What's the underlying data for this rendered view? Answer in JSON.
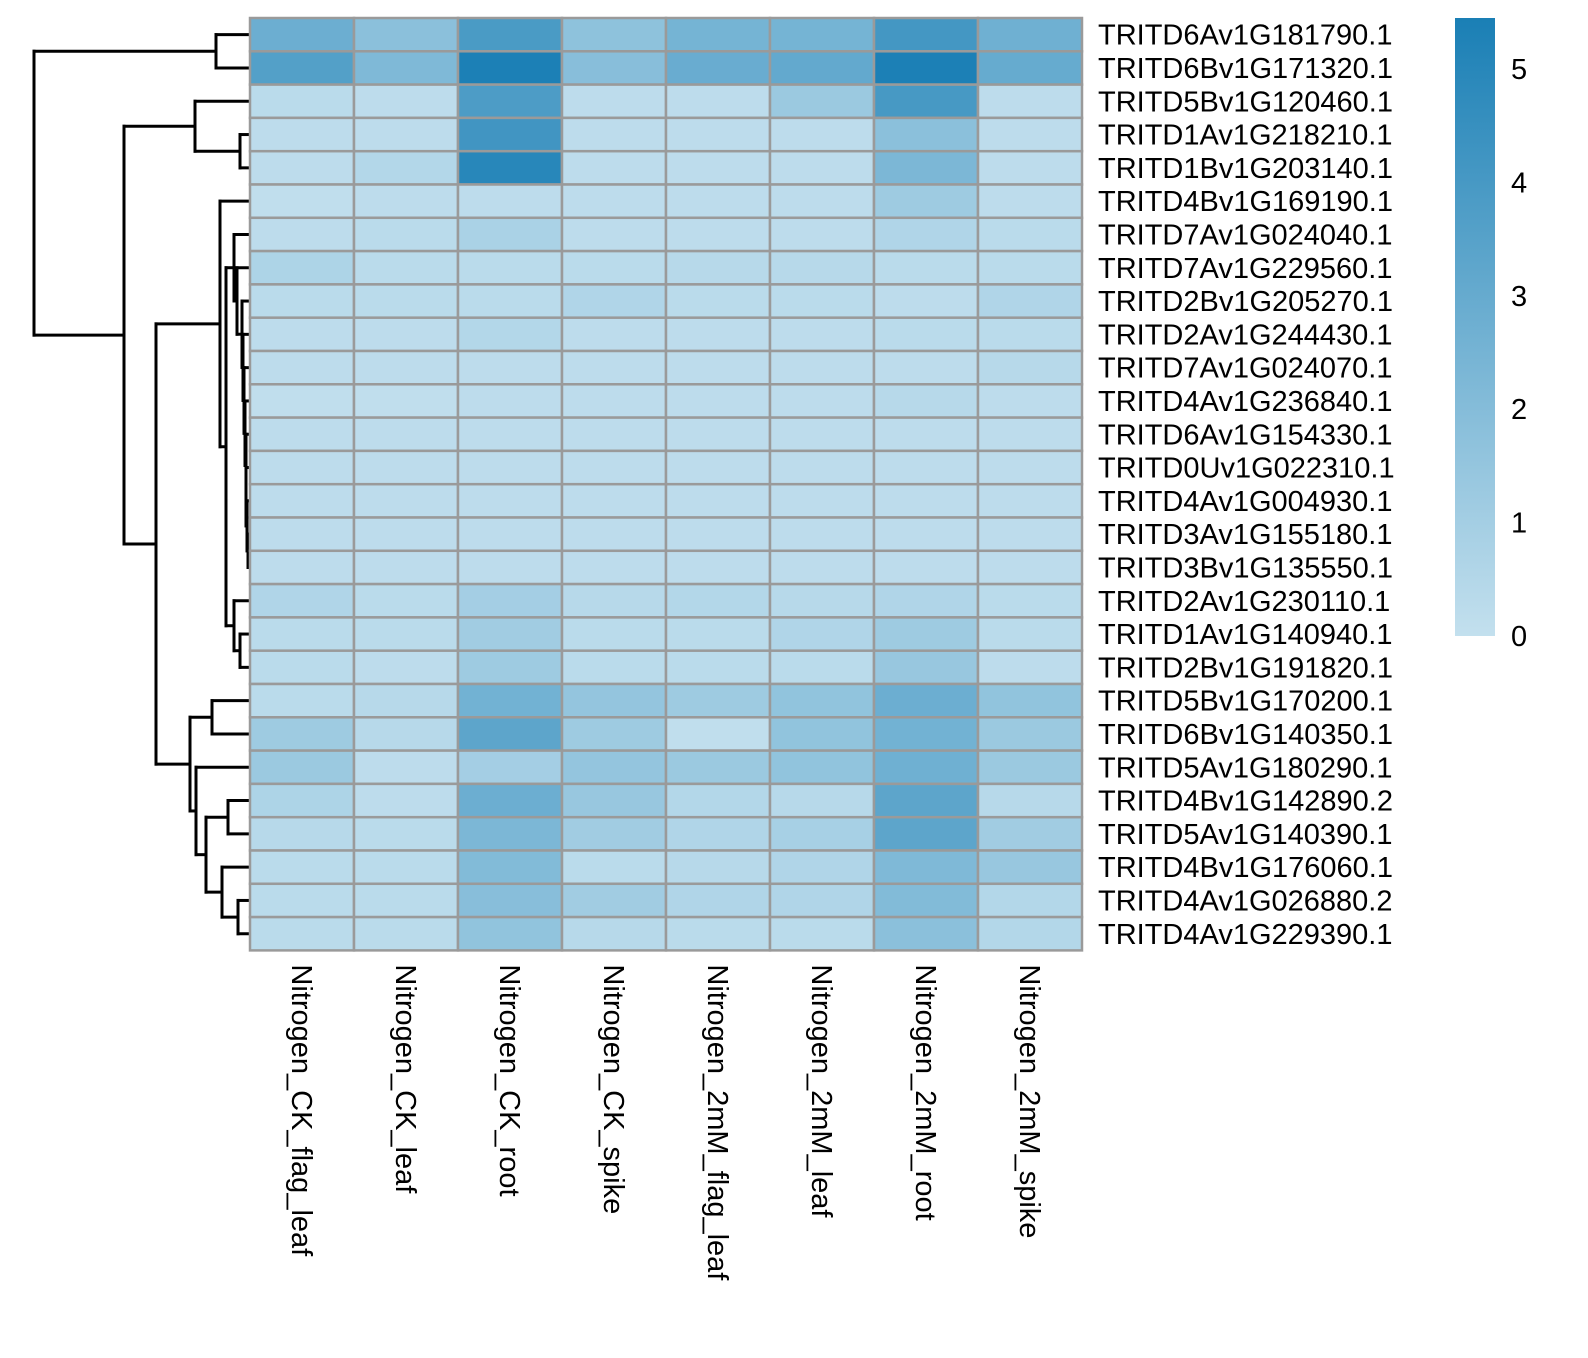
{
  "chart_data": {
    "type": "heatmap",
    "columns": [
      "Nitrogen_CK_flag_leaf",
      "Nitrogen_CK_leaf",
      "Nitrogen_CK_root",
      "Nitrogen_CK_spike",
      "Nitrogen_2mM_flag_leaf",
      "Nitrogen_2mM_leaf",
      "Nitrogen_2mM_root",
      "Nitrogen_2mM_spike"
    ],
    "rows": [
      "TRITD6Av1G181790.1",
      "TRITD6Bv1G171320.1",
      "TRITD5Bv1G120460.1",
      "TRITD1Av1G218210.1",
      "TRITD1Bv1G203140.1",
      "TRITD4Bv1G169190.1",
      "TRITD7Av1G024040.1",
      "TRITD7Av1G229560.1",
      "TRITD2Bv1G205270.1",
      "TRITD2Av1G244430.1",
      "TRITD7Av1G024070.1",
      "TRITD4Av1G236840.1",
      "TRITD6Av1G154330.1",
      "TRITD0Uv1G022310.1",
      "TRITD4Av1G004930.1",
      "TRITD3Av1G155180.1",
      "TRITD3Bv1G135550.1",
      "TRITD2Av1G230110.1",
      "TRITD1Av1G140940.1",
      "TRITD2Bv1G191820.1",
      "TRITD5Bv1G170200.1",
      "TRITD6Bv1G140350.1",
      "TRITD5Av1G180290.1",
      "TRITD4Bv1G142890.2",
      "TRITD5Av1G140390.1",
      "TRITD4Bv1G176060.1",
      "TRITD4Av1G026880.2",
      "TRITD4Av1G229390.1"
    ],
    "values": [
      [
        2.8,
        1.8,
        3.9,
        1.7,
        2.5,
        2.5,
        4.1,
        2.7
      ],
      [
        3.6,
        2.2,
        5.4,
        1.9,
        2.9,
        3.1,
        5.4,
        3.0
      ],
      [
        0.3,
        0.2,
        3.8,
        0.2,
        0.2,
        1.3,
        4.0,
        0.2
      ],
      [
        0.2,
        0.2,
        4.2,
        0.2,
        0.2,
        0.2,
        1.8,
        0.2
      ],
      [
        0.2,
        0.5,
        5.0,
        0.2,
        0.2,
        0.2,
        2.3,
        0.2
      ],
      [
        0.1,
        0.2,
        0.2,
        0.2,
        0.2,
        0.2,
        1.2,
        0.2
      ],
      [
        0.2,
        0.3,
        0.8,
        0.2,
        0.2,
        0.2,
        0.6,
        0.3
      ],
      [
        0.7,
        0.3,
        0.3,
        0.3,
        0.4,
        0.4,
        0.3,
        0.3
      ],
      [
        0.3,
        0.3,
        0.3,
        0.6,
        0.3,
        0.3,
        0.2,
        0.6
      ],
      [
        0.2,
        0.2,
        0.5,
        0.2,
        0.2,
        0.2,
        0.3,
        0.3
      ],
      [
        0.2,
        0.2,
        0.2,
        0.2,
        0.2,
        0.2,
        0.2,
        0.4
      ],
      [
        0.1,
        0.1,
        0.2,
        0.2,
        0.2,
        0.2,
        0.4,
        0.2
      ],
      [
        0.2,
        0.2,
        0.2,
        0.2,
        0.2,
        0.2,
        0.2,
        0.2
      ],
      [
        0.2,
        0.2,
        0.2,
        0.2,
        0.2,
        0.2,
        0.2,
        0.2
      ],
      [
        0.2,
        0.2,
        0.2,
        0.2,
        0.2,
        0.2,
        0.2,
        0.2
      ],
      [
        0.2,
        0.2,
        0.2,
        0.2,
        0.2,
        0.2,
        0.2,
        0.2
      ],
      [
        0.2,
        0.2,
        0.2,
        0.2,
        0.2,
        0.2,
        0.2,
        0.2
      ],
      [
        0.6,
        0.3,
        1.0,
        0.4,
        0.5,
        0.4,
        0.6,
        0.3
      ],
      [
        0.3,
        0.3,
        1.1,
        0.3,
        0.3,
        0.6,
        1.2,
        0.3
      ],
      [
        0.3,
        0.2,
        1.2,
        0.3,
        0.3,
        0.3,
        1.4,
        0.2
      ],
      [
        0.3,
        0.4,
        2.6,
        1.5,
        1.2,
        1.6,
        2.8,
        1.6
      ],
      [
        1.2,
        0.4,
        3.3,
        1.2,
        0.1,
        1.6,
        2.6,
        1.3
      ],
      [
        1.3,
        0.2,
        1.0,
        1.5,
        1.3,
        1.6,
        2.7,
        1.3
      ],
      [
        0.7,
        0.2,
        2.8,
        1.4,
        0.5,
        0.4,
        3.3,
        0.4
      ],
      [
        0.4,
        0.3,
        2.3,
        1.1,
        0.6,
        0.9,
        3.3,
        1.1
      ],
      [
        0.3,
        0.3,
        2.1,
        0.3,
        0.4,
        0.6,
        2.2,
        1.4
      ],
      [
        0.3,
        0.3,
        1.9,
        1.1,
        0.6,
        0.6,
        2.1,
        0.5
      ],
      [
        0.3,
        0.3,
        1.6,
        0.4,
        0.3,
        0.3,
        1.8,
        0.5
      ]
    ],
    "colorbar": {
      "min": 0,
      "max": 5.45,
      "ticks": [
        0,
        1,
        2,
        3,
        4,
        5
      ],
      "low_color": "#c3e0ee",
      "high_color": "#1a7fb5"
    },
    "row_dendrogram": true,
    "grid_color": "#9a9a9a",
    "legend_position": "right"
  }
}
